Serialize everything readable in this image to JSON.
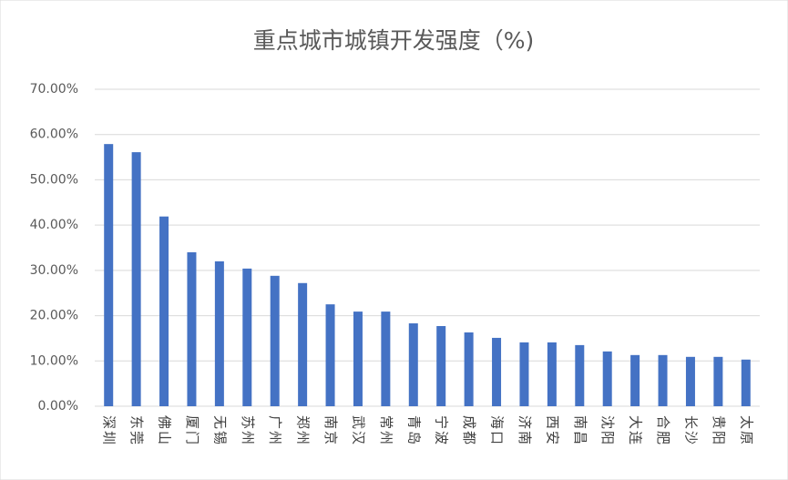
{
  "chart_data": {
    "type": "bar",
    "title": "重点城市城镇开发强度（%)",
    "categories": [
      "深圳",
      "东莞",
      "佛山",
      "厦门",
      "无锡",
      "苏州",
      "广州",
      "郑州",
      "南京",
      "武汉",
      "常州",
      "青岛",
      "宁波",
      "成都",
      "海口",
      "济南",
      "西安",
      "南昌",
      "沈阳",
      "大连",
      "合肥",
      "长沙",
      "贵阳",
      "太原"
    ],
    "values": [
      57.9,
      56.1,
      41.9,
      34.0,
      32.0,
      30.4,
      28.8,
      27.2,
      22.5,
      20.9,
      20.9,
      18.3,
      17.7,
      16.3,
      15.1,
      14.1,
      14.1,
      13.5,
      12.1,
      11.3,
      11.3,
      10.9,
      10.9,
      10.3
    ],
    "color": "#4472c4",
    "ylim": [
      0,
      70
    ],
    "yticks": [
      {
        "value": 0,
        "label": "0.00%"
      },
      {
        "value": 10,
        "label": "10.00%"
      },
      {
        "value": 20,
        "label": "20.00%"
      },
      {
        "value": 30,
        "label": "30.00%"
      },
      {
        "value": 40,
        "label": "40.00%"
      },
      {
        "value": 50,
        "label": "50.00%"
      },
      {
        "value": 60,
        "label": "60.00%"
      },
      {
        "value": 70,
        "label": "70.00%"
      }
    ],
    "grid": true
  }
}
